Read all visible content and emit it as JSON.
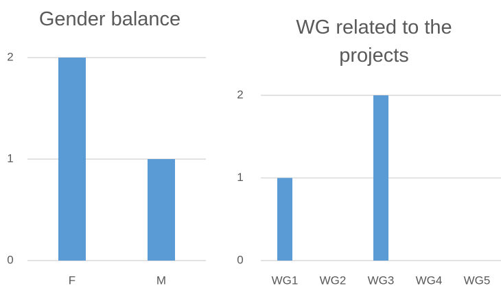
{
  "chart_data": [
    {
      "type": "bar",
      "title": "Gender balance",
      "categories": [
        "F",
        "M"
      ],
      "values": [
        2,
        1
      ],
      "color": "#5b9bd5",
      "ylim": [
        0,
        2
      ],
      "yticks": [
        0,
        1,
        2
      ],
      "grid": true
    },
    {
      "type": "bar",
      "title": "WG related to the projects",
      "categories": [
        "WG1",
        "WG2",
        "WG3",
        "WG4",
        "WG5"
      ],
      "values": [
        1,
        0,
        2,
        0,
        0
      ],
      "color": "#5b9bd5",
      "ylim": [
        0,
        2
      ],
      "yticks": [
        0,
        1,
        2
      ],
      "grid": true
    }
  ]
}
